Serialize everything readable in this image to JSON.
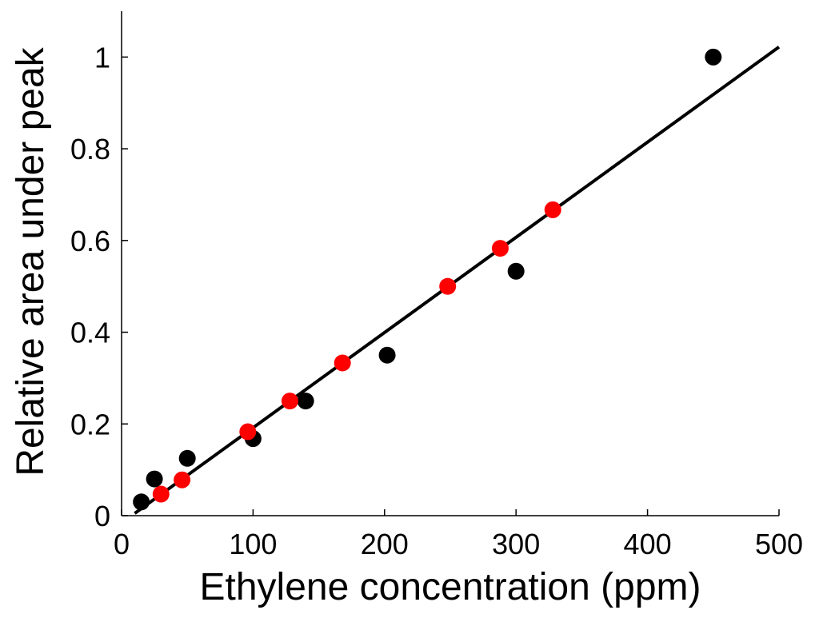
{
  "chart_data": {
    "type": "scatter",
    "title": "",
    "xlabel": "Ethylene concentration (ppm)",
    "ylabel": "Relative area under peak",
    "xlim": [
      0,
      500
    ],
    "ylim": [
      0,
      1.1
    ],
    "xticks": [
      0,
      100,
      200,
      300,
      400,
      500
    ],
    "yticks": [
      0,
      0.2,
      0.4,
      0.6,
      0.8,
      1
    ],
    "xtick_labels": [
      "0",
      "100",
      "200",
      "300",
      "400",
      "500"
    ],
    "ytick_labels": [
      "0",
      "0.2",
      "0.4",
      "0.6",
      "0.8",
      "1"
    ],
    "grid": false,
    "series": [
      {
        "color": "#000000",
        "x": [
          15,
          25,
          50,
          100,
          140,
          202,
          300,
          450
        ],
        "y": [
          0.03,
          0.08,
          0.125,
          0.168,
          0.25,
          0.35,
          0.533,
          1.0
        ]
      },
      {
        "color": "#ff0000",
        "x": [
          30,
          46,
          96,
          128,
          168,
          248,
          288,
          328
        ],
        "y": [
          0.047,
          0.078,
          0.183,
          0.25,
          0.333,
          0.5,
          0.583,
          0.667
        ]
      }
    ],
    "fit_line": {
      "color": "#000000",
      "x": [
        10,
        500
      ],
      "y": [
        0.005,
        1.022
      ]
    }
  }
}
